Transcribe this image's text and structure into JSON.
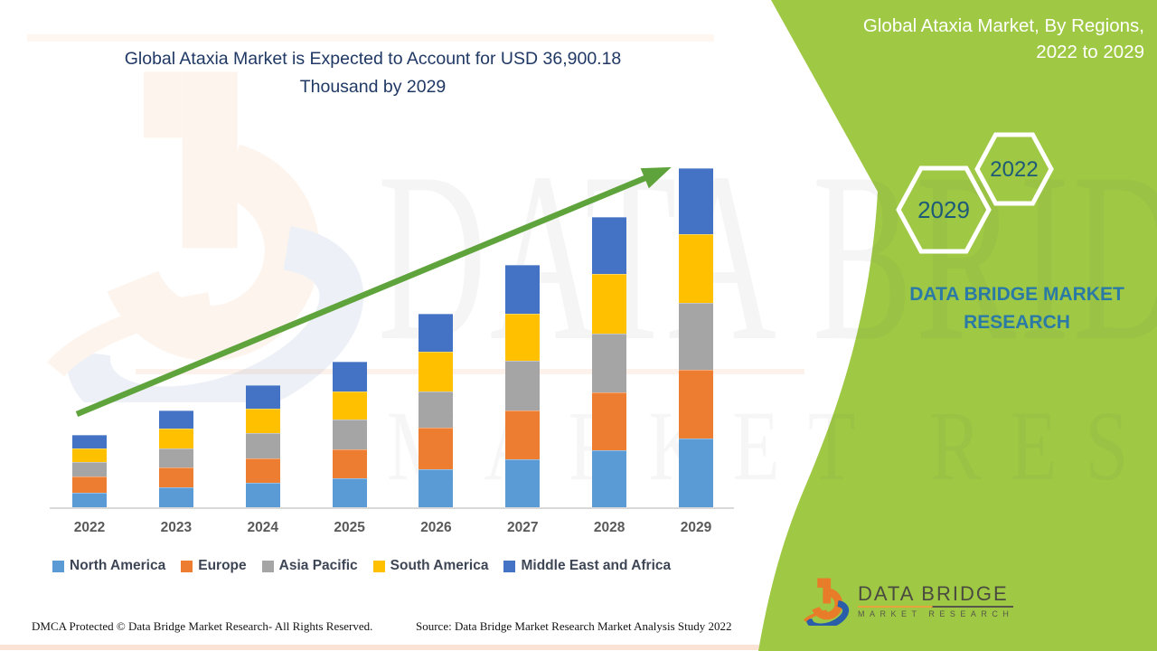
{
  "chart_title": {
    "line1": "Global Ataxia Market is Expected to Account for USD 36,900.18",
    "line2": "Thousand by 2029"
  },
  "panel_header": {
    "line1": "Global Ataxia Market, By Regions,",
    "line2": "2022 to 2029"
  },
  "badges": {
    "hexagon_large_year": "2029",
    "hexagon_small_year": "2022"
  },
  "panel_brand": {
    "line1": "DATA BRIDGE MARKET",
    "line2": "RESEARCH"
  },
  "watermark": {
    "line1": "DATA BRIDGE",
    "line2": "MARKET RESEARCH"
  },
  "footer": {
    "left": "DMCA Protected © Data Bridge Market Research- All Rights Reserved.",
    "right": "Source: Data Bridge Market Research Market Analysis Study 2022"
  },
  "footer_logo": {
    "title": "DATA BRIDGE",
    "subtitle": "MARKET RESEARCH"
  },
  "chart_data": {
    "type": "bar",
    "stacked": true,
    "unit": "USD Thousand",
    "categories": [
      "2022",
      "2023",
      "2024",
      "2025",
      "2026",
      "2027",
      "2028",
      "2029"
    ],
    "series": [
      {
        "name": "North America",
        "color": "#5B9BD5",
        "values": [
          1574.4,
          2164.8,
          2656.8,
          3148.8,
          4132.8,
          5215.2,
          6199.2,
          7478.4
        ]
      },
      {
        "name": "Europe",
        "color": "#ED7D31",
        "values": [
          1771.2,
          2164.8,
          2656.8,
          3148.8,
          4526.4,
          5313.6,
          6297.6,
          7478.4
        ]
      },
      {
        "name": "Asia Pacific",
        "color": "#A5A5A5",
        "values": [
          1574.4,
          2066.4,
          2755.2,
          3247.2,
          3936.0,
          5412.0,
          6396.0,
          7281.6
        ]
      },
      {
        "name": "South America",
        "color": "#FFC000",
        "values": [
          1476.0,
          2164.8,
          2656.8,
          3050.4,
          4329.6,
          5116.8,
          6494.4,
          7478.4
        ]
      },
      {
        "name": "Middle East and Africa",
        "color": "#4472C4",
        "values": [
          1476.0,
          1968.0,
          2558.4,
          3247.2,
          4132.8,
          5313.6,
          6199.2,
          7183.4
        ]
      }
    ],
    "totals": [
      7872.0,
      10528.8,
      13284.0,
      15842.4,
      21057.6,
      26371.2,
      31586.4,
      36900.18
    ],
    "highlight_value_2029": "USD 36,900.18 Thousand",
    "value_per_pixel": 98.4,
    "legend_position": "bottom",
    "grid": false,
    "trend_arrow": true,
    "values_are_estimates_read_from_bars": true
  },
  "colors": {
    "panel_green": "#9fc944",
    "arrow_green": "#5ea33b",
    "title_navy": "#1f3864",
    "brand_teal": "#2b7aa5",
    "axis_label_gray": "#595959",
    "legend_text": "#3e4656",
    "logo_orange": "#e87c28",
    "logo_blue": "#2a5ea8"
  }
}
